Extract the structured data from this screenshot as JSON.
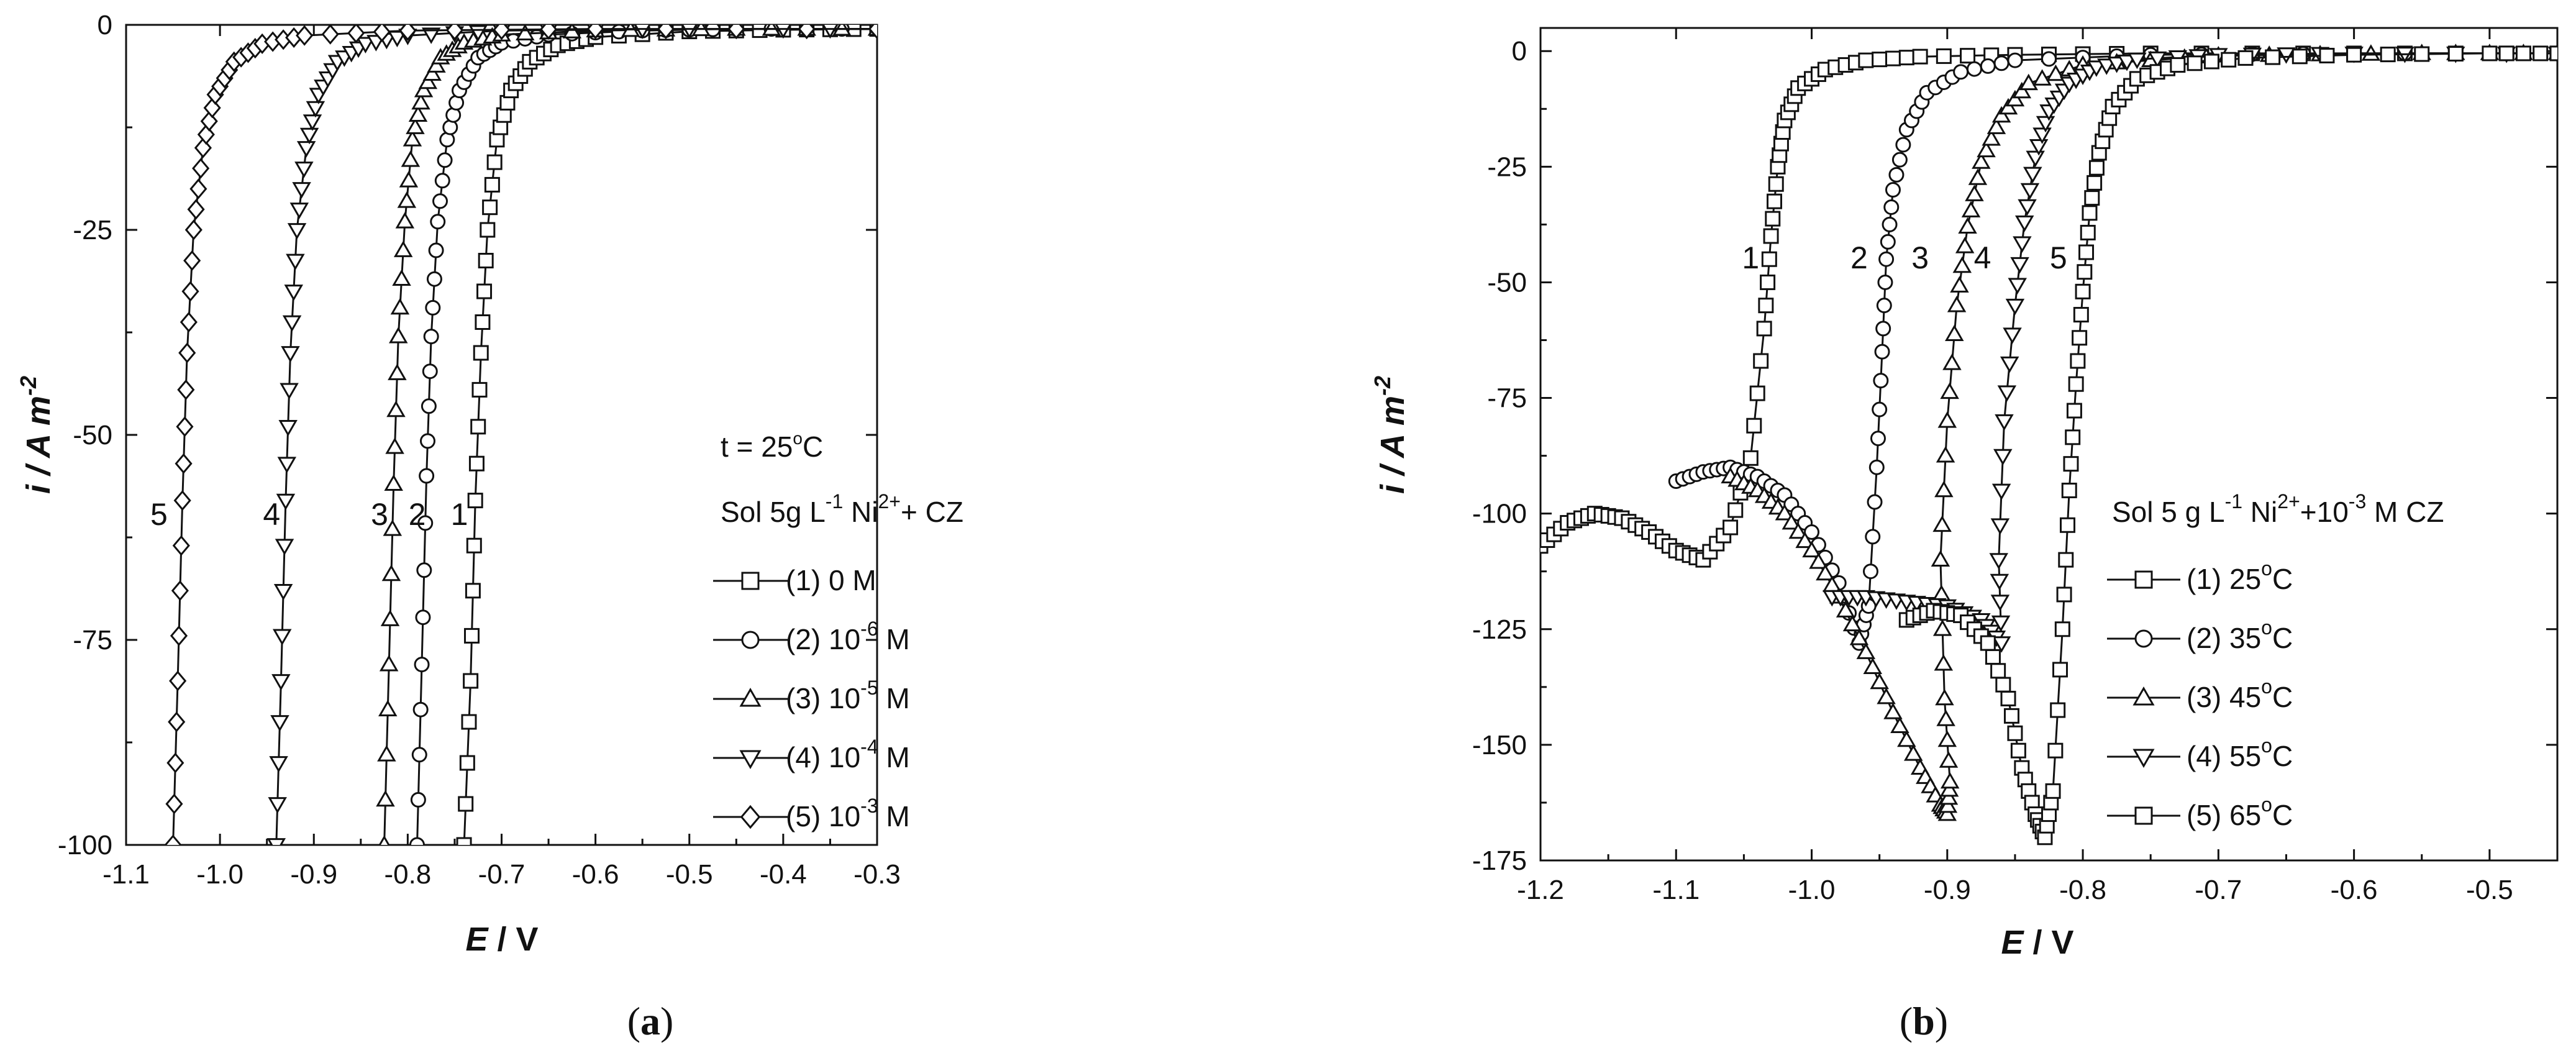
{
  "chart_data": [
    {
      "type": "line",
      "panel_label": [
        "(",
        "a",
        ")"
      ],
      "xlabel": {
        "symbol": "E",
        "unit": " / V"
      },
      "ylabel": {
        "symbol": "i",
        "unit": " / A m",
        "sup": "-2"
      },
      "xlim": [
        -1.1,
        -0.3
      ],
      "ylim": [
        -100,
        0
      ],
      "xticks": [
        -1.1,
        -1.0,
        -0.9,
        -0.8,
        -0.7,
        -0.6,
        -0.5,
        -0.4,
        -0.3
      ],
      "xtick_labels": [
        "-1.1",
        "-1.0",
        "-0.9",
        "-0.8",
        "-0.7",
        "-0.6",
        "-0.5",
        "-0.4",
        "-0.3"
      ],
      "yticks": [
        0,
        -25,
        -50,
        -75,
        -100
      ],
      "ytick_labels": [
        "0",
        "-25",
        "-50",
        "-75",
        "-100"
      ],
      "legend_header": {
        "temp": {
          "prefix": "t = 25",
          "sup": "o",
          "suffix": "C"
        },
        "sol": {
          "prefix": "Sol 5g L",
          "sup1": "-1",
          "mid": " Ni",
          "sup2": "2+",
          "suffix": "+ CZ"
        }
      },
      "legend_entries": [
        {
          "prefix": "(1) 0 M",
          "sup": "",
          "marker": "square"
        },
        {
          "prefix": "(2) 10",
          "sup": "-6",
          "suffix": " M",
          "marker": "circle"
        },
        {
          "prefix": "(3) 10",
          "sup": "-5",
          "suffix": " M",
          "marker": "triangle-up"
        },
        {
          "prefix": "(4) 10",
          "sup": "-4",
          "suffix": " M",
          "marker": "triangle-down"
        },
        {
          "prefix": "(5) 10",
          "sup": "-3",
          "suffix": " M",
          "marker": "diamond"
        }
      ],
      "series": [
        {
          "name": "(1) 0 M",
          "label": "1",
          "marker": "square",
          "x": [
            -0.74,
            -0.733,
            -0.728,
            -0.722,
            -0.715,
            -0.705,
            -0.69,
            -0.67,
            -0.64,
            -0.6,
            -0.5,
            -0.4,
            -0.3
          ],
          "y": [
            -100,
            -80,
            -58,
            -40,
            -25,
            -14,
            -8,
            -4.5,
            -2.5,
            -1.5,
            -0.8,
            -0.6,
            -0.5
          ]
        },
        {
          "name": "(2) 10^-6 M",
          "label": "2",
          "marker": "circle",
          "x": [
            -0.79,
            -0.785,
            -0.78,
            -0.775,
            -0.768,
            -0.758,
            -0.745,
            -0.725,
            -0.7,
            -0.65,
            -0.55,
            -0.45,
            -0.3
          ],
          "y": [
            -100,
            -78,
            -55,
            -38,
            -24,
            -14,
            -8,
            -4,
            -2.2,
            -1.2,
            -0.7,
            -0.5,
            -0.5
          ]
        },
        {
          "name": "(3) 10^-5 M",
          "label": "3",
          "marker": "triangle-up",
          "x": [
            -0.825,
            -0.82,
            -0.815,
            -0.81,
            -0.803,
            -0.795,
            -0.783,
            -0.765,
            -0.74,
            -0.7,
            -0.6,
            -0.45,
            -0.3
          ],
          "y": [
            -100,
            -78,
            -56,
            -38,
            -24,
            -14,
            -8,
            -4,
            -2.2,
            -1.2,
            -0.7,
            -0.5,
            -0.5
          ]
        },
        {
          "name": "(4) 10^-4 M",
          "label": "4",
          "marker": "triangle-down",
          "x": [
            -0.94,
            -0.935,
            -0.93,
            -0.925,
            -0.918,
            -0.908,
            -0.895,
            -0.875,
            -0.845,
            -0.8,
            -0.7,
            -0.5,
            -0.3
          ],
          "y": [
            -100,
            -80,
            -58,
            -40,
            -25,
            -15,
            -8.5,
            -4.5,
            -2.3,
            -1.3,
            -0.7,
            -0.5,
            -0.5
          ]
        },
        {
          "name": "(5) 10^-3 M",
          "label": "5",
          "marker": "diamond",
          "x": [
            -1.05,
            -1.045,
            -1.04,
            -1.035,
            -1.028,
            -1.018,
            -1.005,
            -0.985,
            -0.955,
            -0.91,
            -0.8,
            -0.6,
            -0.3
          ],
          "y": [
            -100,
            -80,
            -58,
            -40,
            -25,
            -15,
            -8.5,
            -4.5,
            -2.3,
            -1.3,
            -0.7,
            -0.5,
            -0.5
          ]
        }
      ],
      "curve_labels": [
        {
          "text": "1",
          "x": -0.745,
          "y": -61
        },
        {
          "text": "2",
          "x": -0.79,
          "y": -61
        },
        {
          "text": "3",
          "x": -0.83,
          "y": -61
        },
        {
          "text": "4",
          "x": -0.945,
          "y": -61
        },
        {
          "text": "5",
          "x": -1.065,
          "y": -61
        }
      ]
    },
    {
      "type": "line",
      "panel_label": [
        "(",
        "b",
        ")"
      ],
      "xlabel": {
        "symbol": "E",
        "unit": " / V"
      },
      "ylabel": {
        "symbol": "i",
        "unit": " / A m",
        "sup": "-2"
      },
      "xlim": [
        -1.2,
        -0.45
      ],
      "ylim": [
        -175,
        5
      ],
      "xticks": [
        -1.2,
        -1.1,
        -1.0,
        -0.9,
        -0.8,
        -0.7,
        -0.6,
        -0.5
      ],
      "xtick_labels": [
        "-1.2",
        "-1.1",
        "-1.0",
        "-0.9",
        "-0.8",
        "-0.7",
        "-0.6",
        "-0.5"
      ],
      "yticks": [
        0,
        -25,
        -50,
        -75,
        -100,
        -125,
        -150,
        -175
      ],
      "ytick_labels": [
        "0",
        "-25",
        "-50",
        "-75",
        "-100",
        "-125",
        "-150",
        "-175"
      ],
      "legend_header": {
        "sol": {
          "prefix": "Sol 5 g L",
          "sup1": "-1",
          "mid": " Ni",
          "sup2": "2+",
          "mid2": "+10",
          "sup3": "-3",
          "suffix": " M CZ"
        }
      },
      "legend_entries": [
        {
          "prefix": "(1) 25",
          "sup": "o",
          "suffix": "C",
          "marker": "square"
        },
        {
          "prefix": "(2) 35",
          "sup": "o",
          "suffix": "C",
          "marker": "circle"
        },
        {
          "prefix": "(3) 45",
          "sup": "o",
          "suffix": "C",
          "marker": "triangle-up"
        },
        {
          "prefix": "(4) 55",
          "sup": "o",
          "suffix": "C",
          "marker": "triangle-down"
        },
        {
          "prefix": "(5) 65",
          "sup": "o",
          "suffix": "C",
          "marker": "square"
        }
      ],
      "series": [
        {
          "name": "(1) 25 C",
          "label": "1",
          "marker": "square",
          "x": [
            -1.2,
            -1.18,
            -1.16,
            -1.14,
            -1.12,
            -1.1,
            -1.08,
            -1.06,
            -1.045,
            -1.035,
            -1.03,
            -1.025,
            -1.02,
            -1.01,
            -0.99,
            -0.96,
            -0.92,
            -0.85,
            -0.75,
            -0.6,
            -0.45
          ],
          "y": [
            -107,
            -102,
            -100,
            -101,
            -104,
            -108,
            -110,
            -103,
            -88,
            -60,
            -40,
            -25,
            -15,
            -8,
            -4,
            -2,
            -1.2,
            -0.8,
            -0.5,
            -0.5,
            -0.5
          ]
        },
        {
          "name": "(2) 35 C",
          "label": "2",
          "marker": "circle",
          "x": [
            -1.1,
            -1.08,
            -1.06,
            -1.04,
            -1.02,
            -1.0,
            -0.98,
            -0.965,
            -0.958,
            -0.952,
            -0.948,
            -0.945,
            -0.94,
            -0.93,
            -0.915,
            -0.89,
            -0.85,
            -0.75,
            -0.6,
            -0.45
          ],
          "y": [
            -93,
            -91,
            -90,
            -92,
            -96,
            -104,
            -115,
            -128,
            -120,
            -90,
            -65,
            -45,
            -30,
            -17,
            -9,
            -4.5,
            -2,
            -0.8,
            -0.5,
            -0.5
          ]
        },
        {
          "name": "(3) 45 C",
          "label": "3",
          "marker": "triangle-up",
          "x": [
            -1.06,
            -1.04,
            -1.02,
            -1.0,
            -0.98,
            -0.96,
            -0.94,
            -0.92,
            -0.905,
            -0.9,
            -0.898,
            -0.902,
            -0.905,
            -0.9,
            -0.893,
            -0.885,
            -0.875,
            -0.86,
            -0.84,
            -0.8,
            -0.7,
            -0.55,
            -0.45
          ],
          "y": [
            -92,
            -95,
            -100,
            -108,
            -118,
            -130,
            -143,
            -155,
            -163,
            -165,
            -158,
            -140,
            -110,
            -80,
            -55,
            -38,
            -24,
            -14,
            -7,
            -3,
            -1,
            -0.5,
            -0.5
          ]
        },
        {
          "name": "(4) 55 C",
          "label": "4",
          "marker": "triangle-down",
          "x": [
            -0.985,
            -0.96,
            -0.93,
            -0.9,
            -0.875,
            -0.86,
            -0.862,
            -0.858,
            -0.85,
            -0.843,
            -0.835,
            -0.825,
            -0.81,
            -0.79,
            -0.76,
            -0.7,
            -0.6,
            -0.45
          ],
          "y": [
            -118,
            -118,
            -119,
            -120,
            -123,
            -128,
            -110,
            -80,
            -55,
            -37,
            -23,
            -13,
            -7,
            -3.5,
            -1.8,
            -0.8,
            -0.5,
            -0.5
          ]
        },
        {
          "name": "(5) 65 C",
          "label": "5",
          "marker": "square",
          "x": [
            -0.93,
            -0.91,
            -0.89,
            -0.87,
            -0.855,
            -0.845,
            -0.835,
            -0.828,
            -0.822,
            -0.815,
            -0.81,
            -0.805,
            -0.8,
            -0.795,
            -0.788,
            -0.778,
            -0.76,
            -0.73,
            -0.68,
            -0.6,
            -0.5,
            -0.45
          ],
          "y": [
            -123,
            -121,
            -122,
            -128,
            -140,
            -155,
            -165,
            -170,
            -160,
            -125,
            -95,
            -72,
            -52,
            -35,
            -22,
            -12,
            -6,
            -3,
            -1.5,
            -0.8,
            -0.5,
            -0.5
          ]
        }
      ],
      "curve_labels": [
        {
          "text": "1",
          "x": -1.045,
          "y": -47
        },
        {
          "text": "2",
          "x": -0.965,
          "y": -47
        },
        {
          "text": "3",
          "x": -0.92,
          "y": -47
        },
        {
          "text": "4",
          "x": -0.874,
          "y": -47
        },
        {
          "text": "5",
          "x": -0.818,
          "y": -47
        }
      ]
    }
  ]
}
